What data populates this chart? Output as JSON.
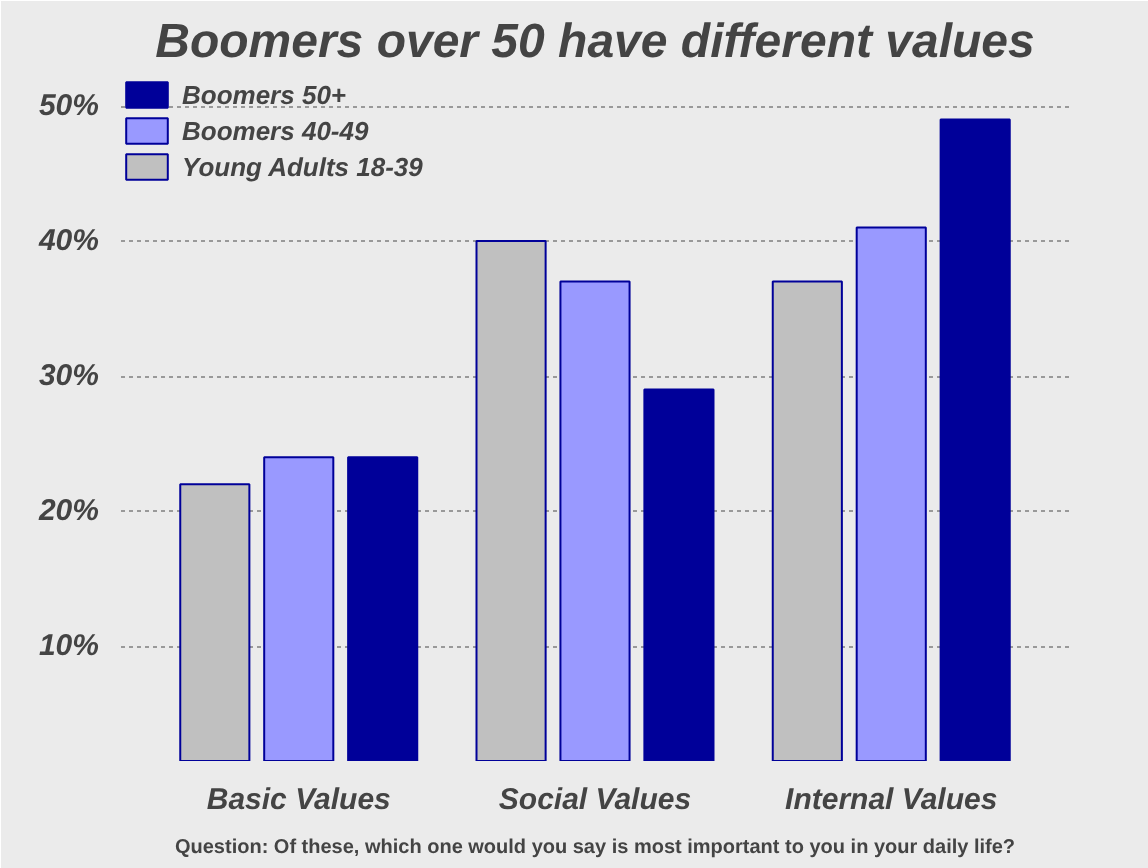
{
  "chart_data": {
    "type": "bar",
    "title": "Boomers over 50 have different values",
    "categories": [
      "Basic Values",
      "Social Values",
      "Internal Values"
    ],
    "series": [
      {
        "name": "Young Adults 18-39",
        "color": "#c0c0c0",
        "values": [
          22,
          40,
          37
        ]
      },
      {
        "name": "Boomers 40-49",
        "color": "#9999ff",
        "values": [
          24,
          37,
          41
        ]
      },
      {
        "name": "Boomers 50+",
        "color": "#000099",
        "values": [
          24,
          29,
          49
        ]
      }
    ],
    "ylim": [
      1.5,
      52
    ],
    "yticks": [
      {
        "value": 10,
        "label": "10%"
      },
      {
        "value": 20,
        "label": "20%"
      },
      {
        "value": 30,
        "label": "30%"
      },
      {
        "value": 40,
        "label": "40%"
      },
      {
        "value": 50,
        "label": "50%"
      }
    ],
    "grid": "y",
    "legend": "top left",
    "annotations": [
      "Question: Of these, which one would you say is most important to you in your daily life?"
    ]
  }
}
